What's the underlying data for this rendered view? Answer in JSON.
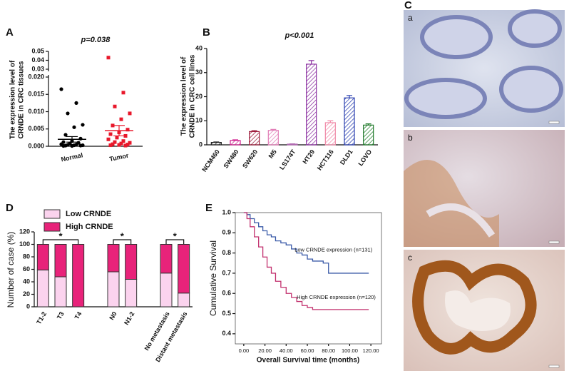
{
  "chart_data": [
    {
      "type": "strip",
      "panel_label": "A",
      "title": "p=0.038",
      "y_label": [
        "The expression level of",
        "CRNDE in CRC tissues"
      ],
      "categories": [
        "Normal",
        "Tumor"
      ],
      "colors": [
        "#000000",
        "#e8182b"
      ],
      "points": [
        [
          0.0165,
          0.0125,
          0.0095,
          0.0062,
          0.0055,
          0.0033,
          0.0022,
          0.0015,
          0.0012,
          0.001,
          0.0008,
          0.0006,
          0.0005,
          0.0004,
          0.0003,
          0.0003,
          0.0002,
          0.0002,
          0.0001,
          0.0001
        ],
        [
          0.043,
          0.0155,
          0.0115,
          0.0095,
          0.0078,
          0.006,
          0.0048,
          0.004,
          0.0035,
          0.003,
          0.0025,
          0.002,
          0.0015,
          0.0012,
          0.001,
          0.0008,
          0.0006,
          0.0005,
          0.0004,
          0.0003,
          0.0002
        ]
      ],
      "means": [
        0.002,
        0.0045
      ],
      "sem": [
        0.0008,
        0.0015
      ],
      "ylim": [
        0,
        0.02
      ],
      "yticks": [
        {
          "value": 0,
          "label": "0.000"
        },
        0.005,
        {
          "value": 0.01,
          "label": "0.010"
        },
        0.015,
        {
          "value": 0.02,
          "label": "0.020"
        }
      ],
      "upper_ylim": [
        0.03,
        0.05
      ],
      "upper_yticks": [
        0.03,
        0.04,
        0.05
      ]
    },
    {
      "type": "bar",
      "panel_label": "B",
      "title": "p<0.001",
      "y_label": [
        "The expression level of",
        "CRNDE in CRC cell lines"
      ],
      "categories": [
        "NCM460",
        "SW480",
        "SW620",
        "M5",
        "LS174T",
        "HT29",
        "HCT116",
        "DLD1",
        "LOVO"
      ],
      "values": [
        1,
        1.8,
        5.5,
        6,
        0.3,
        33.5,
        9.2,
        19.5,
        8.2
      ],
      "errors": [
        0.2,
        0.3,
        0.4,
        0.4,
        0.1,
        1.5,
        0.8,
        1,
        0.5
      ],
      "colors": [
        "#222222",
        "#d0218f",
        "#9c1a3a",
        "#e27fb8",
        "#b06ab0",
        "#8a2ea0",
        "#f08aa8",
        "#2a3fb0",
        "#1f7a2a"
      ],
      "ylim": [
        0,
        40
      ],
      "yticks": [
        0,
        10,
        20,
        30,
        40
      ]
    },
    {
      "type": "stacked_bar",
      "panel_label": "D",
      "y_label": "Number of case (%)",
      "categories": [
        "T1-2",
        "T3",
        "T4",
        null,
        "N0",
        "N1-2",
        null,
        "No metastasis",
        "Distant metastasis"
      ],
      "series": [
        {
          "name": "Low CRNDE",
          "color": "#fbd3ee",
          "values": [
            59,
            48,
            0,
            null,
            56,
            44,
            null,
            54,
            22
          ]
        },
        {
          "name": "High CRNDE",
          "color": "#e8237a",
          "values": [
            41,
            52,
            100,
            null,
            44,
            56,
            null,
            46,
            78
          ]
        }
      ],
      "annotations": [
        "*",
        "*",
        "*"
      ],
      "ylim": [
        0,
        120
      ],
      "yticks": [
        0,
        20,
        40,
        60,
        80,
        100,
        120
      ],
      "legend": "top-left"
    },
    {
      "type": "step",
      "panel_label": "E",
      "x_label": "Overall Survival time (months)",
      "y_label": "Cumulative Survival",
      "series": [
        {
          "name": "Low CRNDE expression (n=131)",
          "color": "#3a5aa8",
          "x": [
            0,
            3,
            6,
            10,
            14,
            18,
            22,
            26,
            30,
            35,
            40,
            45,
            50,
            55,
            60,
            65,
            70,
            75,
            80,
            85,
            90,
            100,
            110,
            118
          ],
          "values": [
            1,
            0.99,
            0.97,
            0.95,
            0.93,
            0.91,
            0.89,
            0.88,
            0.86,
            0.85,
            0.84,
            0.82,
            0.8,
            0.79,
            0.77,
            0.76,
            0.76,
            0.75,
            0.7,
            0.7,
            0.7,
            0.7,
            0.7,
            0.7
          ]
        },
        {
          "name": "High CRNDE expression (n=120)",
          "color": "#c2306e",
          "x": [
            0,
            3,
            6,
            10,
            14,
            18,
            22,
            26,
            30,
            35,
            40,
            45,
            50,
            55,
            60,
            65,
            70,
            80,
            90,
            100,
            110,
            118
          ],
          "values": [
            1,
            0.97,
            0.93,
            0.88,
            0.83,
            0.78,
            0.73,
            0.7,
            0.66,
            0.63,
            0.6,
            0.58,
            0.56,
            0.54,
            0.53,
            0.52,
            0.52,
            0.52,
            0.52,
            0.52,
            0.52,
            0.52
          ]
        }
      ],
      "xlim": [
        -8,
        130
      ],
      "xticks": [
        {
          "value": 0,
          "label": "0.00"
        },
        {
          "value": 20,
          "label": "20.00"
        },
        {
          "value": 40,
          "label": "40.00"
        },
        {
          "value": 60,
          "label": "60.00"
        },
        {
          "value": 80,
          "label": "80.00"
        },
        {
          "value": 100,
          "label": "100.00"
        },
        {
          "value": 120,
          "label": "120.00"
        }
      ],
      "ylim": [
        0.35,
        1.0
      ],
      "yticks": [
        0.4,
        0.5,
        0.6,
        0.7,
        0.8,
        0.9,
        {
          "value": 1,
          "label": "1.0"
        }
      ]
    }
  ],
  "images": {
    "panel_label": "C",
    "labels": [
      "a",
      "b",
      "c"
    ]
  }
}
